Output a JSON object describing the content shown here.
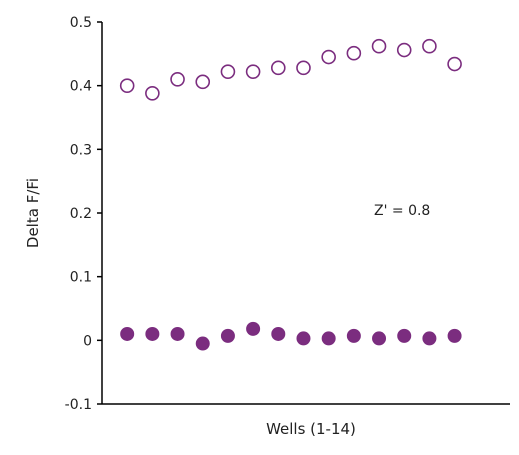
{
  "chart_data": {
    "type": "scatter",
    "title": "",
    "xlabel": "Wells (1-14)",
    "ylabel": "Delta F/Fi",
    "x": [
      1,
      2,
      3,
      4,
      5,
      6,
      7,
      8,
      9,
      10,
      11,
      12,
      13,
      14
    ],
    "xlim": [
      0,
      16.2
    ],
    "ylim": [
      -0.1,
      0.5
    ],
    "yticks": [
      -0.1,
      0,
      0.1,
      0.2,
      0.3,
      0.4,
      0.5
    ],
    "ytick_labels": [
      "-0.1",
      "0",
      "0.1",
      "0.2",
      "0.3",
      "0.4",
      "0.5"
    ],
    "grid": false,
    "series": [
      {
        "marker": "open-circle",
        "color": "#7b2d7f",
        "values": [
          0.4,
          0.388,
          0.41,
          0.406,
          0.422,
          0.422,
          0.428,
          0.428,
          0.445,
          0.451,
          0.462,
          0.456,
          0.462,
          0.434
        ]
      },
      {
        "marker": "filled-circle",
        "color": "#7b2d7f",
        "values": [
          0.01,
          0.01,
          0.01,
          -0.005,
          0.007,
          0.018,
          0.01,
          0.003,
          0.003,
          0.007,
          0.003,
          0.007,
          0.003,
          0.007
        ]
      }
    ],
    "annotations": [
      {
        "text": "Z' = 0.8",
        "x": 10.8,
        "y": 0.205
      }
    ]
  }
}
